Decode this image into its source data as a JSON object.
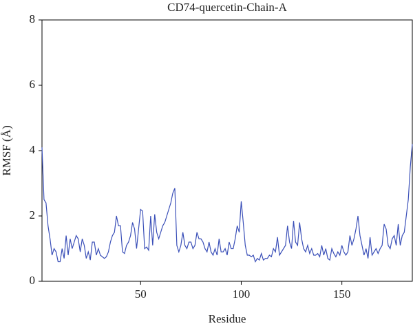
{
  "chart_data": {
    "type": "line",
    "title": "CD74-quercetin-Chain-A",
    "xlabel": "Residue",
    "ylabel": "RMSF (Å)",
    "x": [
      1,
      2,
      3,
      4,
      5,
      6,
      7,
      8,
      9,
      10,
      11,
      12,
      13,
      14,
      15,
      16,
      17,
      18,
      19,
      20,
      21,
      22,
      23,
      24,
      25,
      26,
      27,
      28,
      29,
      30,
      31,
      32,
      33,
      34,
      35,
      36,
      37,
      38,
      39,
      40,
      41,
      42,
      43,
      44,
      45,
      46,
      47,
      48,
      49,
      50,
      51,
      52,
      53,
      54,
      55,
      56,
      57,
      58,
      59,
      60,
      61,
      62,
      63,
      64,
      65,
      66,
      67,
      68,
      69,
      70,
      71,
      72,
      73,
      74,
      75,
      76,
      77,
      78,
      79,
      80,
      81,
      82,
      83,
      84,
      85,
      86,
      87,
      88,
      89,
      90,
      91,
      92,
      93,
      94,
      95,
      96,
      97,
      98,
      99,
      100,
      101,
      102,
      103,
      104,
      105,
      106,
      107,
      108,
      109,
      110,
      111,
      112,
      113,
      114,
      115,
      116,
      117,
      118,
      119,
      120,
      121,
      122,
      123,
      124,
      125,
      126,
      127,
      128,
      129,
      130,
      131,
      132,
      133,
      134,
      135,
      136,
      137,
      138,
      139,
      140,
      141,
      142,
      143,
      144,
      145,
      146,
      147,
      148,
      149,
      150,
      151,
      152,
      153,
      154,
      155,
      156,
      157,
      158,
      159,
      160,
      161,
      162,
      163,
      164,
      165,
      166,
      167,
      168,
      169,
      170,
      171,
      172,
      173,
      174,
      175,
      176,
      177,
      178,
      179,
      180,
      181,
      182,
      183,
      184,
      185
    ],
    "series": [
      {
        "name": "CD74-quercetin-Chain-A",
        "color": "#3a4fb8",
        "values": [
          4.1,
          2.5,
          2.4,
          1.7,
          1.3,
          0.8,
          1.0,
          0.9,
          0.6,
          0.6,
          1.0,
          0.7,
          1.4,
          0.8,
          1.3,
          1.0,
          1.2,
          1.4,
          1.3,
          0.9,
          1.3,
          1.1,
          0.7,
          0.9,
          0.65,
          1.2,
          1.2,
          0.8,
          1.0,
          0.8,
          0.75,
          0.7,
          0.75,
          0.9,
          1.2,
          1.4,
          1.5,
          2.0,
          1.7,
          1.7,
          0.9,
          0.85,
          1.1,
          1.2,
          1.4,
          1.8,
          1.6,
          1.0,
          1.6,
          2.2,
          2.15,
          1.0,
          1.05,
          0.95,
          2.0,
          1.1,
          2.05,
          1.5,
          1.3,
          1.5,
          1.7,
          1.8,
          2.0,
          2.2,
          2.4,
          2.7,
          2.85,
          1.1,
          0.9,
          1.1,
          1.5,
          1.1,
          1.0,
          1.2,
          1.2,
          1.0,
          1.1,
          1.5,
          1.3,
          1.3,
          1.2,
          1.0,
          0.9,
          1.2,
          0.9,
          0.8,
          1.0,
          0.8,
          1.3,
          0.9,
          0.9,
          1.0,
          0.8,
          1.2,
          1.0,
          1.0,
          1.3,
          1.7,
          1.5,
          2.45,
          1.8,
          1.1,
          0.8,
          0.8,
          0.75,
          0.8,
          0.6,
          0.7,
          0.65,
          0.85,
          0.65,
          0.7,
          0.7,
          0.8,
          0.75,
          1.0,
          0.9,
          1.35,
          0.8,
          0.9,
          1.0,
          1.1,
          1.7,
          1.2,
          1.0,
          1.85,
          1.2,
          1.1,
          1.8,
          1.3,
          1.0,
          0.9,
          1.1,
          0.85,
          1.0,
          0.8,
          0.8,
          0.85,
          0.75,
          1.1,
          0.8,
          1.0,
          0.7,
          0.65,
          1.0,
          0.85,
          0.75,
          0.9,
          0.8,
          1.1,
          0.9,
          0.8,
          0.9,
          1.4,
          1.1,
          1.3,
          1.6,
          2.0,
          1.4,
          1.1,
          0.8,
          1.0,
          0.7,
          1.35,
          0.8,
          0.9,
          1.0,
          0.85,
          1.0,
          1.1,
          1.75,
          1.6,
          1.1,
          1.0,
          1.3,
          1.4,
          1.1,
          1.75,
          1.1,
          1.4,
          1.5,
          2.0,
          2.5,
          3.5,
          4.2
        ]
      }
    ],
    "xlim": [
      1,
      185
    ],
    "xticks": [
      50,
      100,
      150
    ],
    "ylim": [
      0,
      8
    ],
    "yticks": [
      0,
      2,
      4,
      6,
      8
    ]
  }
}
